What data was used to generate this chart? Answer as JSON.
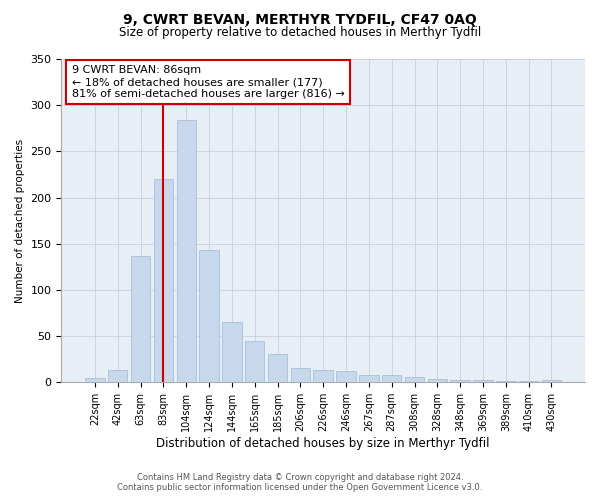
{
  "title": "9, CWRT BEVAN, MERTHYR TYDFIL, CF47 0AQ",
  "subtitle": "Size of property relative to detached houses in Merthyr Tydfil",
  "xlabel": "Distribution of detached houses by size in Merthyr Tydfil",
  "ylabel": "Number of detached properties",
  "footnote1": "Contains HM Land Registry data © Crown copyright and database right 2024.",
  "footnote2": "Contains public sector information licensed under the Open Government Licence v3.0.",
  "annotation_line1": "9 CWRT BEVAN: 86sqm",
  "annotation_line2": "← 18% of detached houses are smaller (177)",
  "annotation_line3": "81% of semi-detached houses are larger (816) →",
  "bar_labels": [
    "22sqm",
    "42sqm",
    "63sqm",
    "83sqm",
    "104sqm",
    "124sqm",
    "144sqm",
    "165sqm",
    "185sqm",
    "206sqm",
    "226sqm",
    "246sqm",
    "267sqm",
    "287sqm",
    "308sqm",
    "328sqm",
    "348sqm",
    "369sqm",
    "389sqm",
    "410sqm",
    "430sqm"
  ],
  "bar_values": [
    5,
    13,
    137,
    220,
    284,
    143,
    65,
    45,
    31,
    16,
    13,
    12,
    8,
    8,
    6,
    4,
    3,
    2,
    1,
    1,
    2
  ],
  "bar_color": "#c8d8ec",
  "bar_edge_color": "#a0b8d8",
  "vline_color": "#cc0000",
  "vline_x_index": 3,
  "annotation_box_color": "#cc0000",
  "background_color": "#ffffff",
  "plot_bg_color": "#e8eef6",
  "grid_color": "#c0c8d8",
  "ylim": [
    0,
    350
  ],
  "yticks": [
    0,
    50,
    100,
    150,
    200,
    250,
    300,
    350
  ],
  "title_fontsize": 10,
  "subtitle_fontsize": 8.5,
  "xlabel_fontsize": 8.5,
  "ylabel_fontsize": 7.5,
  "xtick_fontsize": 7,
  "ytick_fontsize": 8,
  "annotation_fontsize": 8,
  "footnote_fontsize": 6
}
